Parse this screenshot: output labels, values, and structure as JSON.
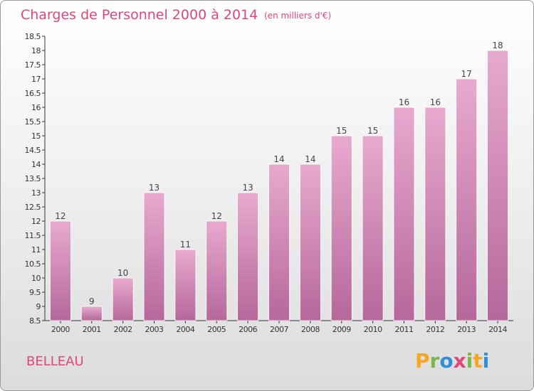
{
  "header": {
    "title": "Charges de Personnel 2000 à 2014",
    "subtitle": "(en milliers d'€)"
  },
  "footer": {
    "city": "BELLEAU",
    "logo_letters": [
      "P",
      "r",
      "o",
      "x",
      "i",
      "t",
      "i"
    ],
    "logo_colors": [
      "#f5a623",
      "#7ab648",
      "#2e8fd6",
      "#e0457b",
      "#7ab648",
      "#f5a623",
      "#2e8fd6"
    ]
  },
  "colors": {
    "bar_top": "#e8a9cf",
    "bar_bottom": "#b5689a",
    "accent": "#e0457b"
  },
  "chart_data": {
    "type": "bar",
    "title": "Charges de Personnel 2000 à 2014",
    "subtitle": "(en milliers d'€)",
    "categories": [
      "2000",
      "2001",
      "2002",
      "2003",
      "2004",
      "2005",
      "2006",
      "2007",
      "2008",
      "2009",
      "2010",
      "2011",
      "2012",
      "2013",
      "2014"
    ],
    "values": [
      12,
      9,
      10,
      13,
      11,
      12,
      13,
      14,
      14,
      15,
      15,
      16,
      16,
      17,
      18
    ],
    "ylim": [
      8.5,
      18.5
    ],
    "yticks": [
      "8.5",
      "9",
      "9.5",
      "10",
      "10.5",
      "11",
      "11.5",
      "12",
      "12.5",
      "13",
      "13.5",
      "14",
      "14.5",
      "15",
      "15.5",
      "16",
      "16.5",
      "17",
      "17.5",
      "18",
      "18.5"
    ],
    "grid": false
  }
}
